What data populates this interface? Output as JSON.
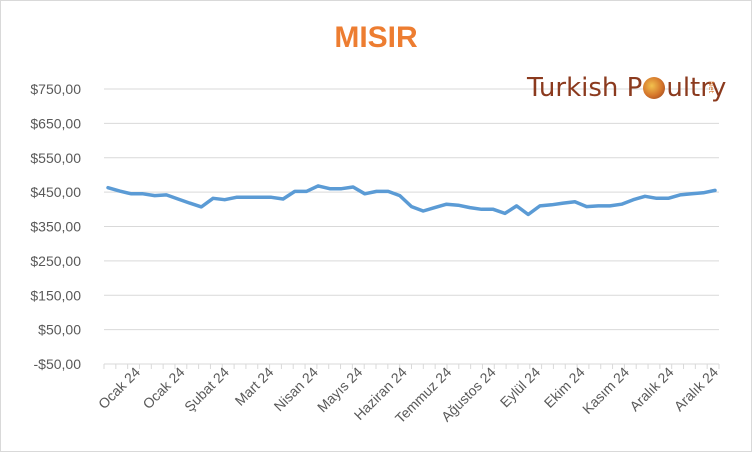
{
  "chart_data": {
    "type": "line",
    "title": "MISIR",
    "yticks": [
      "$750,00",
      "$650,00",
      "$550,00",
      "$450,00",
      "$350,00",
      "$250,00",
      "$150,00",
      "$50,00",
      "-$50,00"
    ],
    "ylim": [
      -50,
      750
    ],
    "xtick_labels": [
      "Ocak 24",
      "Ocak 24",
      "Şubat 24",
      "Mart 24",
      "Nisan 24",
      "Mayıs 24",
      "Haziran 24",
      "Temmuz 24",
      "Ağustos 24",
      "Eylül 24",
      "Ekim 24",
      "Kasım 24",
      "Aralık 24",
      "Aralık 24"
    ],
    "series": [
      {
        "color": "#5b9bd5",
        "values": [
          463,
          453,
          445,
          445,
          440,
          442,
          430,
          418,
          407,
          432,
          428,
          435,
          435,
          435,
          435,
          430,
          452,
          452,
          468,
          460,
          460,
          465,
          445,
          452,
          452,
          440,
          408,
          395,
          405,
          415,
          412,
          405,
          400,
          400,
          388,
          410,
          385,
          410,
          413,
          418,
          422,
          408,
          410,
          410,
          415,
          428,
          438,
          432,
          432,
          442,
          445,
          448,
          455
        ]
      }
    ],
    "grid": true
  },
  "logo": {
    "text_before": "Turkish P",
    "text_after": "ultry",
    "sub": "Net"
  }
}
